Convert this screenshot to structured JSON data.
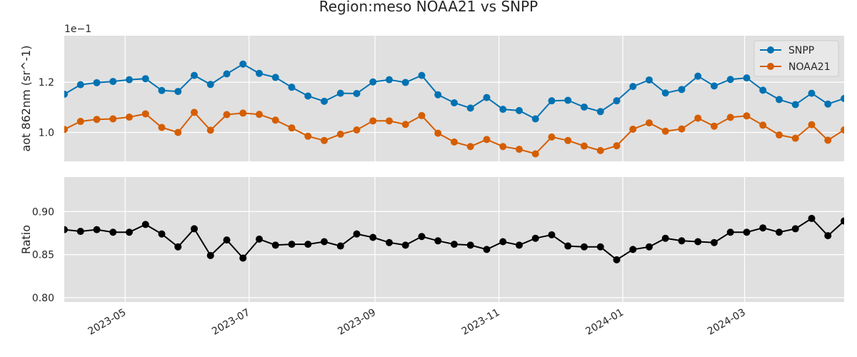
{
  "chart_data": {
    "type": "line",
    "title": "Region:meso NOAA21 vs SNPP",
    "x": [
      "2023-04-01",
      "2023-04-09",
      "2023-04-17",
      "2023-04-25",
      "2023-05-03",
      "2023-05-11",
      "2023-05-19",
      "2023-05-27",
      "2023-06-04",
      "2023-06-12",
      "2023-06-20",
      "2023-06-28",
      "2023-07-06",
      "2023-07-14",
      "2023-07-22",
      "2023-07-30",
      "2023-08-07",
      "2023-08-15",
      "2023-08-23",
      "2023-08-31",
      "2023-09-08",
      "2023-09-16",
      "2023-09-24",
      "2023-10-02",
      "2023-10-10",
      "2023-10-18",
      "2023-10-26",
      "2023-11-03",
      "2023-11-11",
      "2023-11-19",
      "2023-11-27",
      "2023-12-05",
      "2023-12-13",
      "2023-12-21",
      "2023-12-29",
      "2024-01-06",
      "2024-01-14",
      "2024-01-22",
      "2024-01-30",
      "2024-02-07",
      "2024-02-15",
      "2024-02-23",
      "2024-03-02",
      "2024-03-10",
      "2024-03-18",
      "2024-03-26",
      "2024-04-03",
      "2024-04-11",
      "2024-04-19"
    ],
    "xticks": [
      "2023-05",
      "2023-07",
      "2023-09",
      "2023-11",
      "2024-01",
      "2024-03"
    ],
    "xlim": [
      "2023-04-01",
      "2024-04-19"
    ],
    "top": {
      "ylabel": "aot 862nm (sr^-1)",
      "offset_text": "1e−1",
      "ylim": [
        0.0885,
        0.1385
      ],
      "yticks": [
        0.1,
        0.12
      ],
      "ytick_labels": [
        "1.0",
        "1.2"
      ],
      "legend_position": "upper right",
      "series": [
        {
          "name": "SNPP",
          "color": "#0072b2",
          "values": [
            0.1152,
            0.119,
            0.1198,
            0.1203,
            0.121,
            0.1214,
            0.1167,
            0.1163,
            0.1227,
            0.1191,
            0.1233,
            0.1272,
            0.1235,
            0.1219,
            0.118,
            0.1145,
            0.1124,
            0.1156,
            0.1155,
            0.1201,
            0.121,
            0.1199,
            0.1227,
            0.115,
            0.1118,
            0.1097,
            0.1139,
            0.1092,
            0.1087,
            0.1054,
            0.1126,
            0.1128,
            0.1101,
            0.1083,
            0.1126,
            0.1183,
            0.1209,
            0.1157,
            0.1171,
            0.1224,
            0.1185,
            0.1211,
            0.1217,
            0.1168,
            0.1131,
            0.1111,
            0.1156,
            0.1113,
            0.1135
          ]
        },
        {
          "name": "NOAA21",
          "color": "#d55e00",
          "values": [
            0.1012,
            0.1044,
            0.1052,
            0.1054,
            0.1061,
            0.1074,
            0.102,
            0.1,
            0.108,
            0.1009,
            0.1071,
            0.1077,
            0.1072,
            0.1049,
            0.1018,
            0.0985,
            0.0968,
            0.0993,
            0.101,
            0.1046,
            0.1046,
            0.1032,
            0.1067,
            0.0997,
            0.0962,
            0.0944,
            0.0972,
            0.0944,
            0.0933,
            0.0915,
            0.0982,
            0.0968,
            0.0946,
            0.0928,
            0.0947,
            0.1013,
            0.1038,
            0.1005,
            0.1014,
            0.1057,
            0.1025,
            0.106,
            0.1066,
            0.1029,
            0.099,
            0.0977,
            0.1031,
            0.0969,
            0.101
          ]
        }
      ]
    },
    "bottom": {
      "ylabel": "Ratio",
      "ylim": [
        0.795,
        0.94
      ],
      "yticks": [
        0.8,
        0.85,
        0.9
      ],
      "ytick_labels": [
        "0.80",
        "0.85",
        "0.90"
      ],
      "series": [
        {
          "name": "",
          "color": "#000000",
          "values": [
            0.879,
            0.877,
            0.879,
            0.876,
            0.876,
            0.885,
            0.874,
            0.859,
            0.88,
            0.849,
            0.867,
            0.846,
            0.868,
            0.861,
            0.862,
            0.862,
            0.865,
            0.86,
            0.874,
            0.87,
            0.864,
            0.861,
            0.871,
            0.866,
            0.862,
            0.861,
            0.856,
            0.865,
            0.861,
            0.869,
            0.873,
            0.86,
            0.859,
            0.859,
            0.844,
            0.856,
            0.859,
            0.869,
            0.866,
            0.865,
            0.864,
            0.876,
            0.876,
            0.881,
            0.876,
            0.88,
            0.892,
            0.872,
            0.889
          ]
        }
      ]
    },
    "grid": true,
    "background": "#e0e0e0"
  }
}
